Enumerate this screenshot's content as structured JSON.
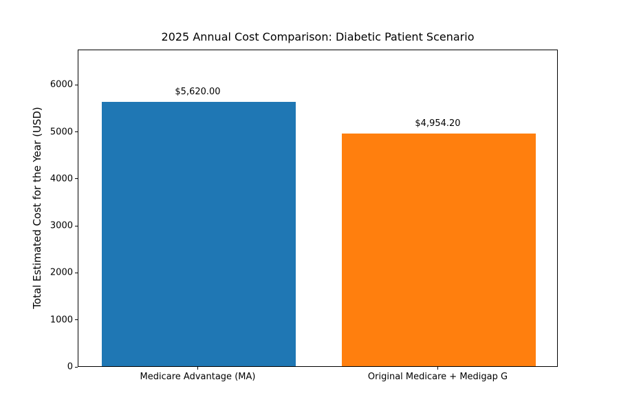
{
  "chart_data": {
    "type": "bar",
    "title": "2025 Annual Cost Comparison: Diabetic Patient Scenario",
    "categories": [
      "Medicare Advantage (MA)",
      "Original Medicare + Medigap G"
    ],
    "values": [
      5620.0,
      4954.2
    ],
    "value_labels": [
      "$5,620.00",
      "$4,954.20"
    ],
    "bar_colors": [
      "#1f77b4",
      "#ff7f0e"
    ],
    "xlabel": "",
    "ylabel": "Total Estimated Cost for the Year (USD)",
    "ylim": [
      0,
      6750
    ],
    "yticks": [
      0,
      1000,
      2000,
      3000,
      4000,
      5000,
      6000
    ],
    "grid": false,
    "legend": "none",
    "background_color": "#ffffff",
    "spine_color": "#000000",
    "text_color": "#000000"
  }
}
